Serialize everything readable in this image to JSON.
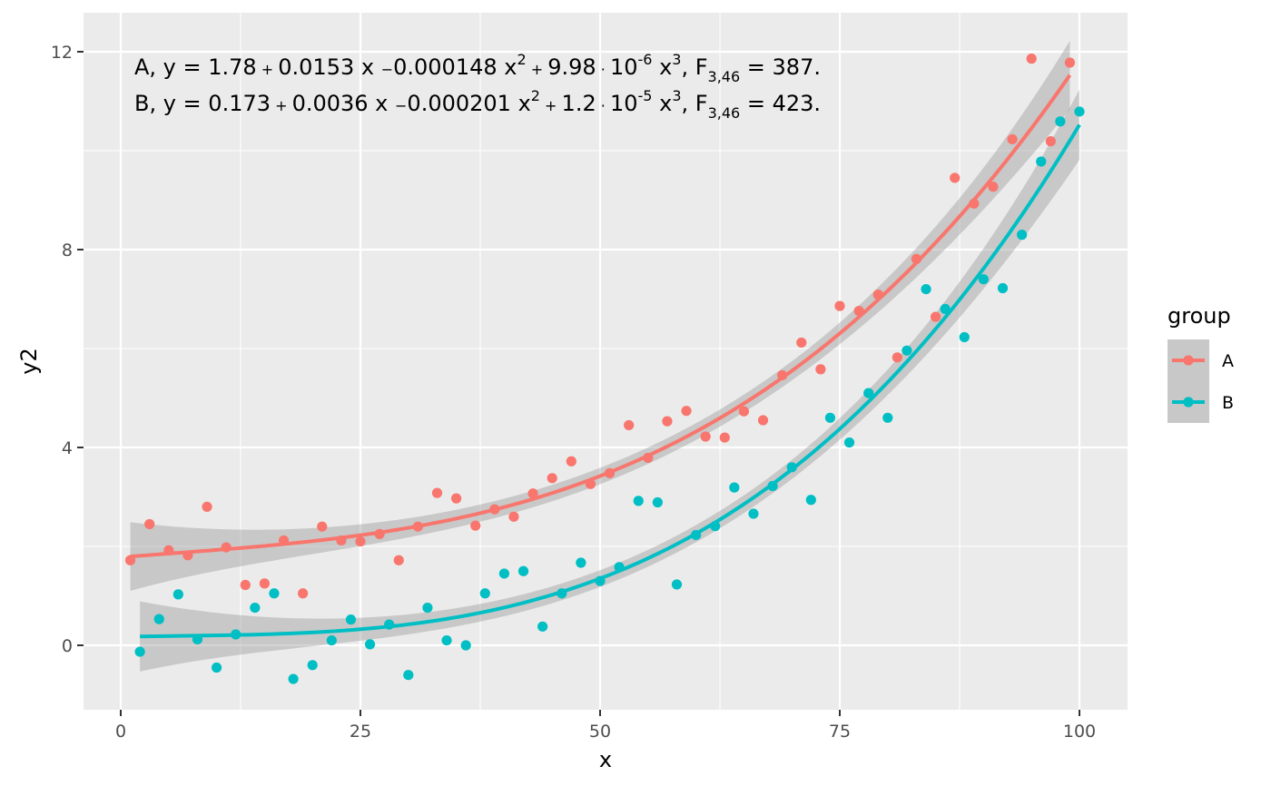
{
  "chart_data": {
    "type": "scatter",
    "xlabel": "x",
    "ylabel": "y2",
    "xlim": [
      -2,
      103
    ],
    "ylim": [
      -1.3,
      12.6
    ],
    "x_ticks": [
      0,
      25,
      50,
      75,
      100
    ],
    "x_tick_labels": [
      "0",
      "25",
      "50",
      "75",
      "100"
    ],
    "y_ticks": [
      0,
      4,
      8,
      12
    ],
    "y_tick_labels": [
      "0",
      "4",
      "8",
      "12"
    ],
    "grid": true,
    "legend": {
      "title": "group",
      "position": "right"
    },
    "annotations": [
      {
        "label": "A",
        "parts": [
          {
            "t": "A, y = 1.78"
          },
          {
            "t": " + ",
            "small": true
          },
          {
            "t": "0.0153 x "
          },
          {
            "t": "−",
            "small": true
          },
          {
            "t": "0.000148 x"
          },
          {
            "t": "2",
            "sup": true
          },
          {
            "t": " + ",
            "small": true
          },
          {
            "t": "9.98"
          },
          {
            "t": " · ",
            "small": true
          },
          {
            "t": "10"
          },
          {
            "t": "-6",
            "sup": true
          },
          {
            "t": " x"
          },
          {
            "t": "3",
            "sup": true
          },
          {
            "t": ", F"
          },
          {
            "t": "3,46",
            "sub": true
          },
          {
            "t": " = 387."
          }
        ]
      },
      {
        "label": "B",
        "parts": [
          {
            "t": "B, y = 0.173"
          },
          {
            "t": " + ",
            "small": true
          },
          {
            "t": "0.0036 x "
          },
          {
            "t": "−",
            "small": true
          },
          {
            "t": "0.000201 x"
          },
          {
            "t": "2",
            "sup": true
          },
          {
            "t": " + ",
            "small": true
          },
          {
            "t": "1.2"
          },
          {
            "t": " · ",
            "small": true
          },
          {
            "t": "10"
          },
          {
            "t": "-5",
            "sup": true
          },
          {
            "t": " x"
          },
          {
            "t": "3",
            "sup": true
          },
          {
            "t": ", F"
          },
          {
            "t": "3,46",
            "sub": true
          },
          {
            "t": " = 423."
          }
        ]
      }
    ],
    "series": [
      {
        "name": "A",
        "color": "#F8766D",
        "fit": {
          "intercept": 1.78,
          "b1": 0.0153,
          "b2": -0.000148,
          "b3": 9.98e-06,
          "x_range": [
            1,
            99
          ]
        },
        "points": [
          [
            1,
            1.72
          ],
          [
            3,
            2.45
          ],
          [
            5,
            1.92
          ],
          [
            7,
            1.82
          ],
          [
            9,
            2.8
          ],
          [
            11,
            1.98
          ],
          [
            13,
            1.22
          ],
          [
            15,
            1.25
          ],
          [
            17,
            2.12
          ],
          [
            19,
            1.05
          ],
          [
            21,
            2.4
          ],
          [
            23,
            2.12
          ],
          [
            25,
            2.1
          ],
          [
            27,
            2.25
          ],
          [
            29,
            1.72
          ],
          [
            31,
            2.4
          ],
          [
            33,
            3.08
          ],
          [
            35,
            2.97
          ],
          [
            37,
            2.42
          ],
          [
            39,
            2.75
          ],
          [
            41,
            2.6
          ],
          [
            43,
            3.07
          ],
          [
            45,
            3.38
          ],
          [
            47,
            3.72
          ],
          [
            49,
            3.26
          ],
          [
            51,
            3.48
          ],
          [
            53,
            4.45
          ],
          [
            55,
            3.79
          ],
          [
            57,
            4.53
          ],
          [
            59,
            4.74
          ],
          [
            61,
            4.22
          ],
          [
            63,
            4.2
          ],
          [
            65,
            4.73
          ],
          [
            67,
            4.55
          ],
          [
            69,
            5.46
          ],
          [
            71,
            6.12
          ],
          [
            73,
            5.58
          ],
          [
            75,
            6.86
          ],
          [
            77,
            6.76
          ],
          [
            79,
            7.09
          ],
          [
            81,
            5.82
          ],
          [
            83,
            7.81
          ],
          [
            85,
            6.64
          ],
          [
            87,
            9.45
          ],
          [
            89,
            8.93
          ],
          [
            91,
            9.27
          ],
          [
            93,
            10.23
          ],
          [
            95,
            11.86
          ],
          [
            97,
            10.19
          ],
          [
            99,
            11.78
          ]
        ]
      },
      {
        "name": "B",
        "color": "#00BFC4",
        "fit": {
          "intercept": 0.173,
          "b1": 0.0036,
          "b2": -0.000201,
          "b3": 1.2e-05,
          "x_range": [
            2,
            100
          ]
        },
        "points": [
          [
            2,
            -0.13
          ],
          [
            4,
            0.53
          ],
          [
            6,
            1.03
          ],
          [
            8,
            0.12
          ],
          [
            10,
            -0.45
          ],
          [
            12,
            0.22
          ],
          [
            14,
            0.76
          ],
          [
            16,
            1.05
          ],
          [
            18,
            -0.68
          ],
          [
            20,
            -0.4
          ],
          [
            22,
            0.1
          ],
          [
            24,
            0.52
          ],
          [
            26,
            0.02
          ],
          [
            28,
            0.42
          ],
          [
            30,
            -0.6
          ],
          [
            32,
            0.76
          ],
          [
            34,
            0.1
          ],
          [
            36,
            0.0
          ],
          [
            38,
            1.05
          ],
          [
            40,
            1.45
          ],
          [
            42,
            1.5
          ],
          [
            44,
            0.38
          ],
          [
            46,
            1.05
          ],
          [
            48,
            1.67
          ],
          [
            50,
            1.3
          ],
          [
            52,
            1.58
          ],
          [
            54,
            2.92
          ],
          [
            56,
            2.89
          ],
          [
            58,
            1.23
          ],
          [
            60,
            2.23
          ],
          [
            62,
            2.41
          ],
          [
            64,
            3.19
          ],
          [
            66,
            2.66
          ],
          [
            68,
            3.22
          ],
          [
            70,
            3.6
          ],
          [
            72,
            2.94
          ],
          [
            74,
            4.6
          ],
          [
            76,
            4.1
          ],
          [
            78,
            5.1
          ],
          [
            80,
            4.6
          ],
          [
            82,
            5.96
          ],
          [
            84,
            7.2
          ],
          [
            86,
            6.8
          ],
          [
            88,
            6.23
          ],
          [
            90,
            7.4
          ],
          [
            92,
            7.22
          ],
          [
            94,
            8.3
          ],
          [
            96,
            9.78
          ],
          [
            98,
            10.59
          ],
          [
            100,
            10.79
          ]
        ]
      }
    ]
  }
}
